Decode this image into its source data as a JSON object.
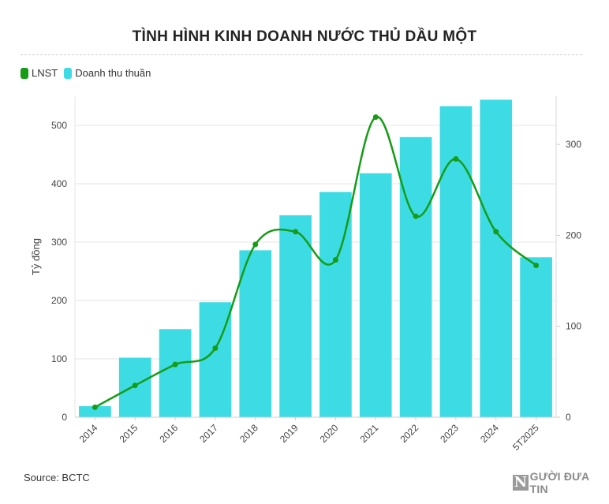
{
  "chart_data": {
    "type": "bar",
    "title": "TÌNH HÌNH KINH DOANH NƯỚC THỦ DẦU MỘT",
    "categories": [
      "2014",
      "2015",
      "2016",
      "2017",
      "2018",
      "2019",
      "2020",
      "2021",
      "2022",
      "2023",
      "2024",
      "5T2025"
    ],
    "series": [
      {
        "name": "Doanh thu thuần",
        "type": "bar",
        "axis": "left",
        "color": "#3ddbe4",
        "values": [
          19,
          102,
          151,
          197,
          286,
          346,
          386,
          418,
          480,
          533,
          544,
          274
        ]
      },
      {
        "name": "LNST",
        "type": "line",
        "axis": "right",
        "color": "#169c16",
        "values": [
          11,
          35,
          58,
          76,
          190,
          204,
          173,
          330,
          221,
          284,
          204,
          167
        ]
      }
    ],
    "ylabel": "Tỷ đồng",
    "ylim": [
      0,
      550
    ],
    "y_ticks": [
      "0",
      "100",
      "200",
      "300",
      "400",
      "500"
    ],
    "y2lim": [
      0,
      353
    ],
    "y2_ticks": [
      "0",
      "100",
      "200",
      "300"
    ],
    "legend_position": "top-left",
    "grid": true
  },
  "footer": {
    "source": "Source: BCTC",
    "brand_mark": "N",
    "brand_text": "GƯỜI ĐƯA TIN"
  }
}
